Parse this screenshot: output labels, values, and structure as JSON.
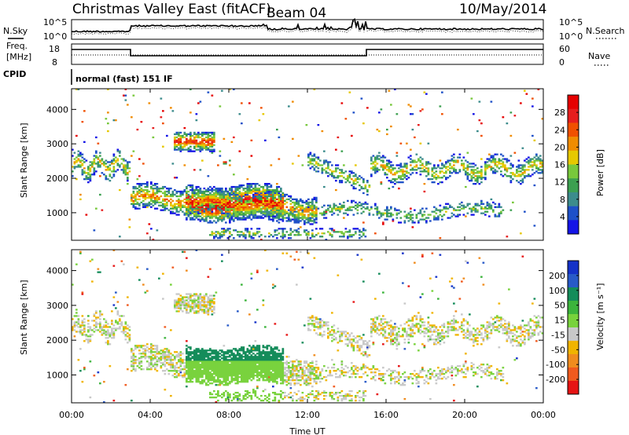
{
  "header": {
    "title": "Christmas Valley East (fitACF)",
    "beam": "Beam 04",
    "date": "10/May/2014"
  },
  "noise_panel": {
    "left_label": "N.Sky",
    "right_label": "N.Search",
    "left_ticks": [
      "10^5",
      "10^0"
    ],
    "right_ticks": [
      "10^5",
      "10^0"
    ]
  },
  "freq_panel": {
    "left_label_1": "Freq.",
    "left_label_2": "[MHz]",
    "right_label": "Nave",
    "left_ticks": [
      "18",
      "8"
    ],
    "right_ticks": [
      "60",
      "0"
    ]
  },
  "cpid": {
    "label": "CPID",
    "mode": "normal (fast) 151 IF"
  },
  "colors": {
    "power": [
      "#1414e6",
      "#1e50c8",
      "#3c8c8c",
      "#3ca050",
      "#78c83c",
      "#e6c800",
      "#f08c00",
      "#f05000",
      "#e61e1e",
      "#e60000"
    ],
    "velocity": [
      "#1432c8",
      "#285ac8",
      "#148c5a",
      "#3cb43c",
      "#78d23c",
      "#c8c8c8",
      "#f0b400",
      "#f08c1e",
      "#f05a1e",
      "#e61414"
    ]
  },
  "chart_data": [
    {
      "type": "heatmap",
      "name": "power",
      "ylabel": "Slant Range [km]",
      "y_ticks": [
        "1000",
        "2000",
        "3000",
        "4000"
      ],
      "ylim": [
        200,
        4600
      ],
      "colorbar_label": "Power [dB]",
      "colorbar_ticks": [
        "4",
        "8",
        "12",
        "16",
        "20",
        "24",
        "28"
      ]
    },
    {
      "type": "heatmap",
      "name": "velocity",
      "ylabel": "Slant Range [km]",
      "y_ticks": [
        "1000",
        "2000",
        "3000",
        "4000"
      ],
      "ylim": [
        200,
        4600
      ],
      "colorbar_label": "Velocity [m s⁻¹]",
      "colorbar_ticks": [
        "200",
        "100",
        "50",
        "15",
        "-15",
        "-50",
        "-100",
        "-200"
      ],
      "xlabel": "Time UT",
      "x_ticks": [
        "00:00",
        "04:00",
        "08:00",
        "12:00",
        "16:00",
        "20:00",
        "00:00"
      ]
    }
  ]
}
